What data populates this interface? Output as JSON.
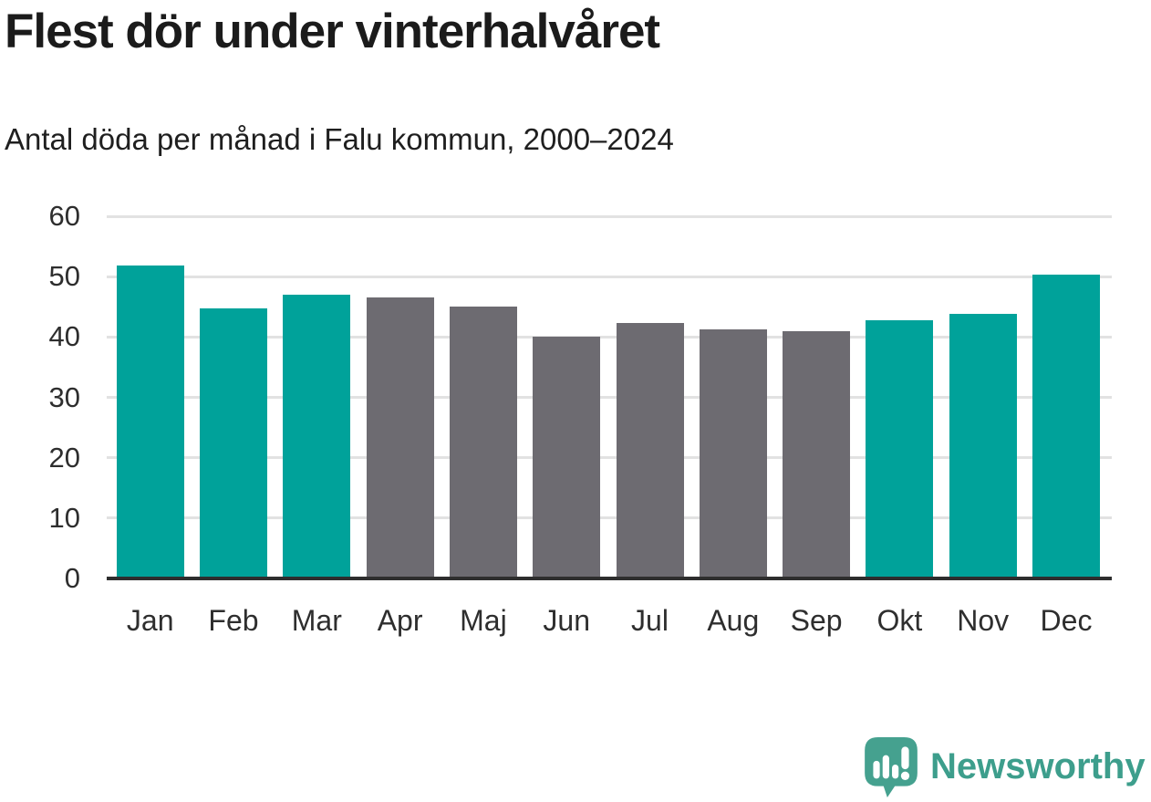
{
  "header": {
    "title": "Flest dör under vinterhalvåret",
    "subtitle": "Antal döda per månad i Falu kommun, 2000–2024"
  },
  "chart_data": {
    "type": "bar",
    "title": "Flest dör under vinterhalvåret",
    "subtitle": "Antal döda per månad i Falu kommun, 2000–2024",
    "categories": [
      "Jan",
      "Feb",
      "Mar",
      "Apr",
      "Maj",
      "Jun",
      "Jul",
      "Aug",
      "Sep",
      "Okt",
      "Nov",
      "Dec"
    ],
    "values": [
      51.9,
      44.7,
      47.0,
      46.5,
      45.0,
      40.1,
      42.3,
      41.2,
      40.9,
      42.8,
      43.8,
      50.3
    ],
    "bar_color_keys": [
      "winter",
      "winter",
      "winter",
      "summer",
      "summer",
      "summer",
      "summer",
      "summer",
      "summer",
      "winter",
      "winter",
      "winter"
    ],
    "palette": {
      "winter": "#00a29a",
      "summer": "#6d6b71"
    },
    "xlabel": "",
    "ylabel": "",
    "ylim": [
      0,
      60
    ],
    "yticks": [
      0,
      10,
      20,
      30,
      40,
      50,
      60
    ],
    "grid": "horizontal",
    "legend": "none",
    "axis_color": "#2e2e2e",
    "gridline_color": "#e2e2e2"
  },
  "footer": {
    "brand": "Newsworthy",
    "brand_color": "#3d9e8c",
    "logo_color": "#45a18f"
  }
}
